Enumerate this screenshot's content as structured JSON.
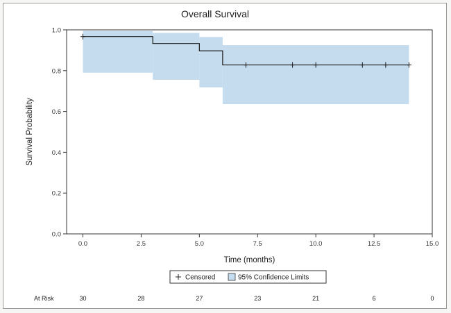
{
  "chart_data": {
    "type": "line",
    "title": "Overall Survival",
    "xlabel": "Time (months)",
    "ylabel": "Survival Probability",
    "xlim": [
      -0.7,
      15.0
    ],
    "ylim": [
      0.0,
      1.0
    ],
    "x_ticks": [
      0.0,
      2.5,
      5.0,
      7.5,
      10.0,
      12.5,
      15.0
    ],
    "x_tick_labels": [
      "0.0",
      "2.5",
      "5.0",
      "7.5",
      "10.0",
      "12.5",
      "15.0"
    ],
    "y_ticks": [
      0.0,
      0.2,
      0.4,
      0.6,
      0.8,
      1.0
    ],
    "y_tick_labels": [
      "0.0",
      "0.2",
      "0.4",
      "0.6",
      "0.8",
      "1.0"
    ],
    "grid": false,
    "survival_steps": [
      {
        "x": 0.0,
        "y": 0.967
      },
      {
        "x": 3.0,
        "y": 0.933
      },
      {
        "x": 5.0,
        "y": 0.897
      },
      {
        "x": 6.0,
        "y": 0.828
      },
      {
        "x": 14.0,
        "y": 0.828
      }
    ],
    "confidence_band": [
      {
        "x0": 0.0,
        "x1": 3.0,
        "lower": 0.79,
        "upper": 0.995
      },
      {
        "x0": 3.0,
        "x1": 5.0,
        "lower": 0.755,
        "upper": 0.985
      },
      {
        "x0": 5.0,
        "x1": 6.0,
        "lower": 0.718,
        "upper": 0.965
      },
      {
        "x0": 6.0,
        "x1": 14.0,
        "lower": 0.636,
        "upper": 0.925
      }
    ],
    "censored": [
      {
        "x": 0.0,
        "y": 0.967
      },
      {
        "x": 7.0,
        "y": 0.828
      },
      {
        "x": 9.0,
        "y": 0.828
      },
      {
        "x": 10.0,
        "y": 0.828
      },
      {
        "x": 12.0,
        "y": 0.828
      },
      {
        "x": 13.0,
        "y": 0.828
      },
      {
        "x": 14.0,
        "y": 0.828
      }
    ],
    "legend": {
      "position": "bottom-center",
      "items": [
        {
          "symbol": "+",
          "label": "Censored"
        },
        {
          "symbol": "band",
          "label": "95% Confidence Limits"
        }
      ]
    },
    "at_risk": {
      "label": "At Risk",
      "times": [
        0,
        2.5,
        5,
        7.5,
        10,
        12.5,
        15
      ],
      "counts": [
        "30",
        "28",
        "27",
        "23",
        "21",
        "6",
        "0"
      ]
    },
    "colors": {
      "band": "#c5dcef",
      "line": "#1a1a1a",
      "axis": "#333333"
    }
  }
}
